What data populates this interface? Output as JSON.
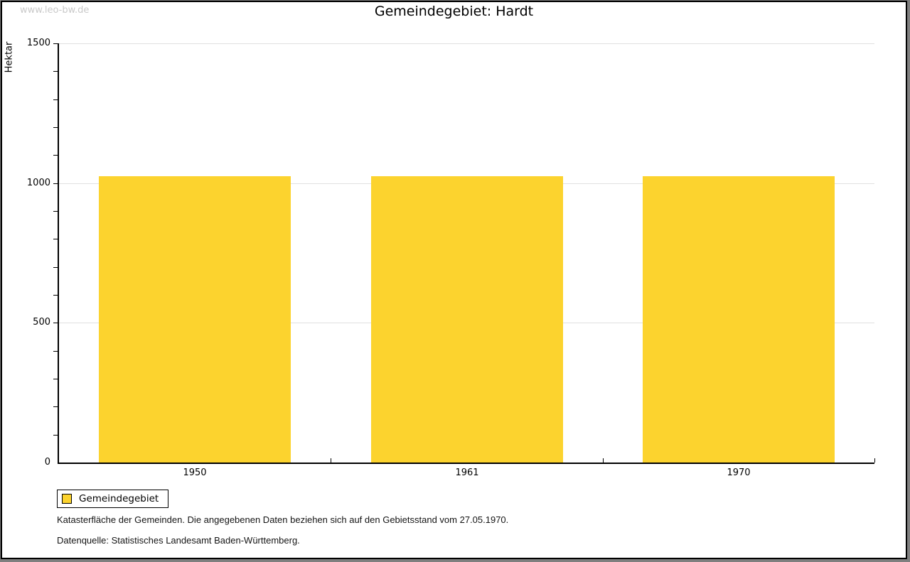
{
  "watermark": "www.leo-bw.de",
  "title": "Gemeindegebiet: Hardt",
  "chart_data": {
    "type": "bar",
    "title": "Gemeindegebiet: Hardt",
    "categories": [
      "1950",
      "1961",
      "1970"
    ],
    "series": [
      {
        "name": "Gemeindegebiet",
        "color": "#fcd32e",
        "values": [
          1025,
          1025,
          1025
        ]
      }
    ],
    "xlabel": "",
    "ylabel": "Hektar",
    "ylim": [
      0,
      1500
    ],
    "ytick_step": 500,
    "minor_tick_step": 100,
    "grid": true,
    "legend_position": "bottom-left"
  },
  "legend": {
    "label": "Gemeindegebiet"
  },
  "captions": [
    "Katasterfläche der Gemeinden. Die angegebenen Daten beziehen sich auf den Gebietsstand vom 27.05.1970.",
    "Datenquelle: Statistisches Landesamt Baden-Württemberg."
  ],
  "colors": {
    "bar": "#fcd32e",
    "gridline": "#e0e0e0",
    "axis": "#000000",
    "watermark": "#c9c9c9",
    "frame_outer": "#7f7f7f"
  }
}
